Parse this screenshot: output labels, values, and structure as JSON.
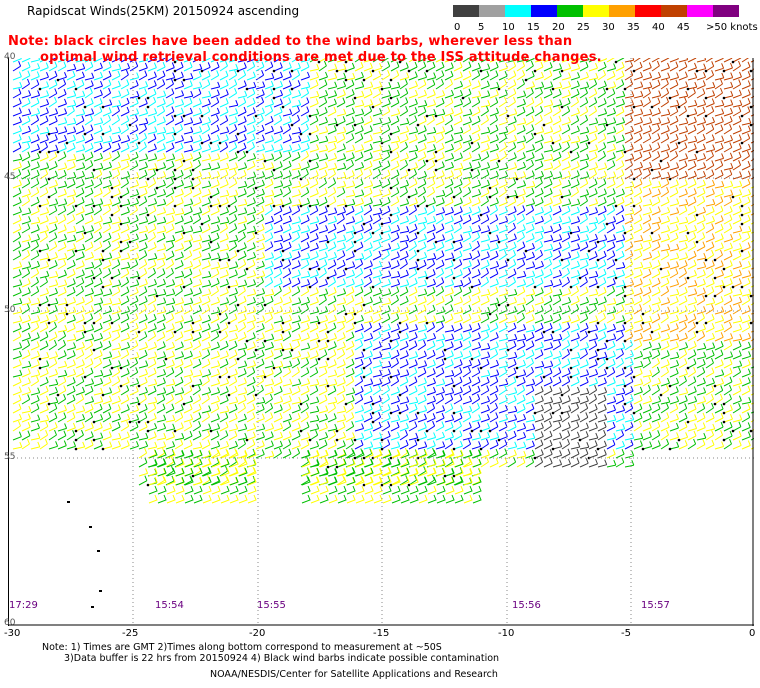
{
  "header": {
    "title": "Rapidscat Winds(25KM) 20150924 ascending",
    "note_line1": "Note: black circles have been added to the wind barbs, wherever less than",
    "note_line2": "optimal wind retrieval conditions are met due to the ISS attitude changes."
  },
  "colorbar": {
    "labels": [
      "0",
      "5",
      "10",
      "15",
      "20",
      "25",
      "30",
      "35",
      "40",
      "45",
      ">50 knots"
    ],
    "colors": [
      "#404040",
      "#a0a0a0",
      "#00ffff",
      "#0000ff",
      "#00c000",
      "#ffff00",
      "#ffa000",
      "#ff0000",
      "#c04000",
      "#ff00ff",
      "#800080"
    ]
  },
  "map": {
    "lon_labels": [
      "-30",
      "-25",
      "-20",
      "-15",
      "-10",
      "-5",
      "0"
    ],
    "lat_labels": [
      "40",
      "45",
      "50",
      "55",
      "60"
    ],
    "time_labels": [
      "17:29",
      "15:54",
      "15:55",
      "15:56",
      "15:57"
    ]
  },
  "footer": {
    "note1": "Note: 1) Times are GMT 2)Times along bottom correspond to measurement at ~50S",
    "note2": "3)Data buffer is 22 hrs from 20150924 4) Black wind barbs indicate possible contamination",
    "credit": "NOAA/NESDIS/Center for Satellite Applications and Research"
  }
}
